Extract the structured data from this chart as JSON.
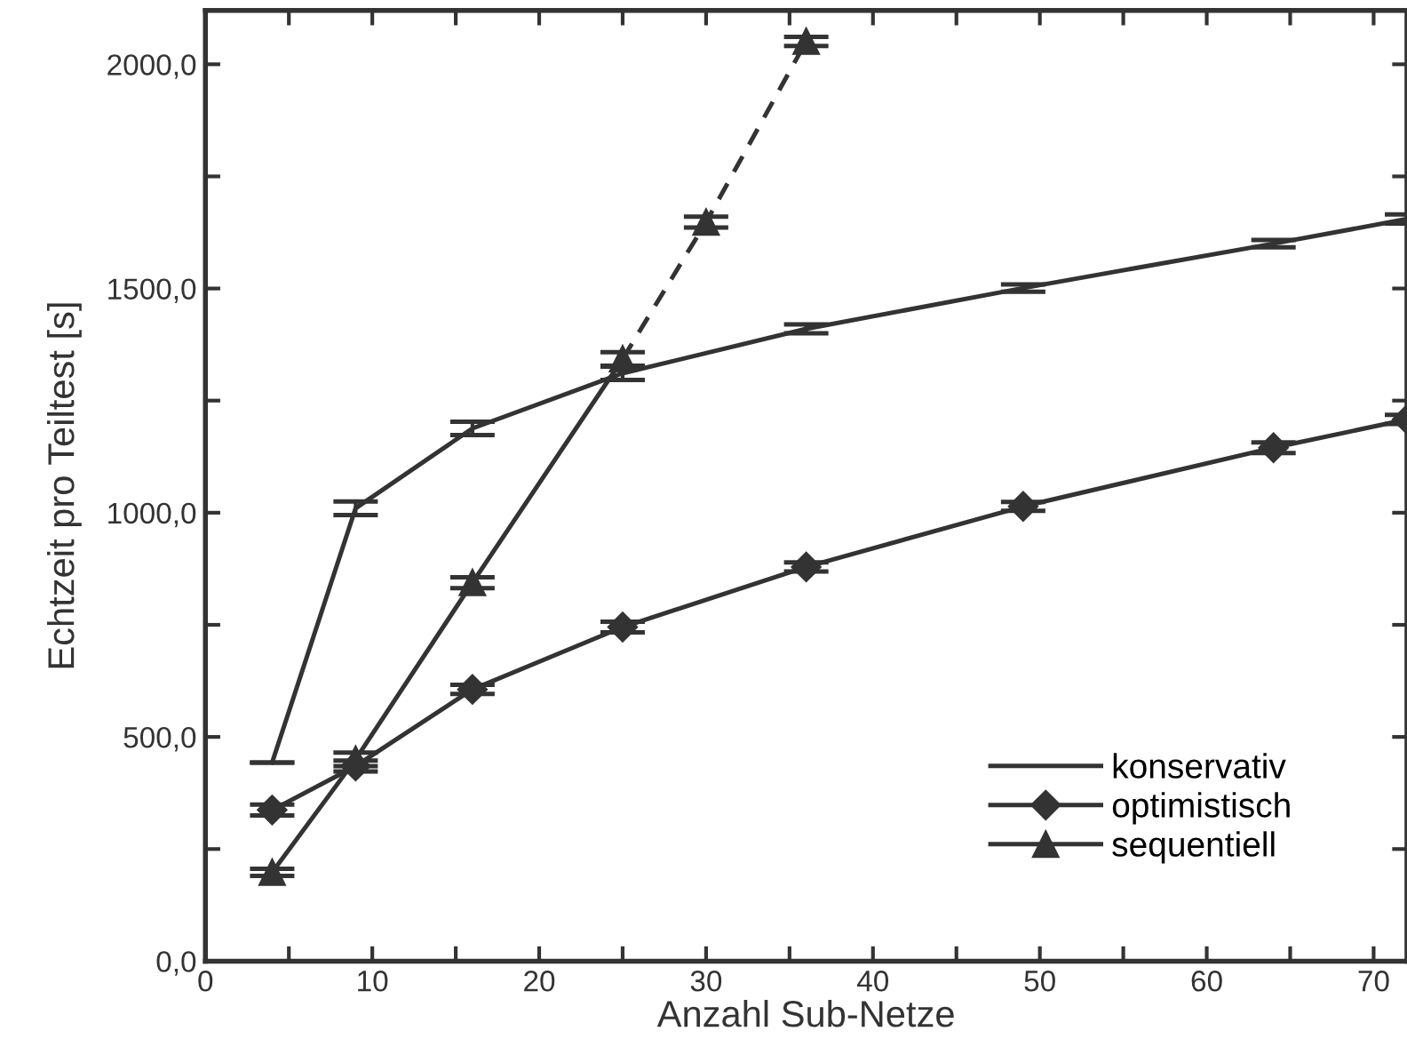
{
  "chart_data": {
    "type": "line",
    "xlabel": "Anzahl Sub-Netze",
    "ylabel": "Echtzeit pro Teiltest [s]",
    "xlim": [
      0,
      72
    ],
    "ylim": [
      0,
      2120
    ],
    "xticks": [
      0,
      {
        "value": 5,
        "label": null
      },
      10,
      {
        "value": 15,
        "label": null
      },
      20,
      {
        "value": 25,
        "label": null
      },
      30,
      {
        "value": 35,
        "label": null
      },
      40,
      {
        "value": 45,
        "label": null
      },
      50,
      {
        "value": 55,
        "label": null
      },
      60,
      {
        "value": 65,
        "label": null
      },
      70
    ],
    "yticks": [
      {
        "value": 0,
        "label": "0,0"
      },
      {
        "value": 250,
        "label": null
      },
      {
        "value": 500,
        "label": "500,0"
      },
      {
        "value": 750,
        "label": null
      },
      {
        "value": 1000,
        "label": "1000,0"
      },
      {
        "value": 1250,
        "label": null
      },
      {
        "value": 1500,
        "label": "1500,0"
      },
      {
        "value": 1750,
        "label": null
      },
      {
        "value": 2000,
        "label": "2000,0"
      }
    ],
    "grid": false,
    "legend": "bottom right",
    "series": [
      {
        "name": "konservativ",
        "color": "#333333",
        "marker": "none",
        "line_style": "solid",
        "x": [
          4,
          9,
          16,
          25,
          36,
          49,
          64,
          72
        ],
        "values": [
          443,
          1010,
          1188,
          1311,
          1410,
          1501,
          1600,
          1655
        ],
        "errors": [
          0,
          15,
          15,
          15,
          10,
          8,
          8,
          10
        ]
      },
      {
        "name": "optimistisch",
        "color": "#333333",
        "marker": "diamond",
        "line_style": "solid",
        "x": [
          4,
          9,
          16,
          25,
          36,
          49,
          64,
          72
        ],
        "values": [
          337,
          435,
          606,
          745,
          879,
          1014,
          1145,
          1208
        ],
        "errors": [
          12,
          12,
          10,
          12,
          10,
          10,
          12,
          10
        ]
      },
      {
        "name": "sequentiell",
        "color": "#333333",
        "marker": "triangle",
        "line_style": "solid",
        "x": [
          4,
          9,
          16,
          25
        ],
        "values": [
          198,
          450,
          844,
          1343
        ],
        "errors": [
          8,
          15,
          12,
          15
        ]
      },
      {
        "color": "#333333",
        "marker": "triangle",
        "line_style": "dashed",
        "x": [
          25,
          30,
          36
        ],
        "values": [
          1343,
          1648,
          2051
        ],
        "errors": [
          null,
          12,
          10
        ]
      }
    ]
  }
}
